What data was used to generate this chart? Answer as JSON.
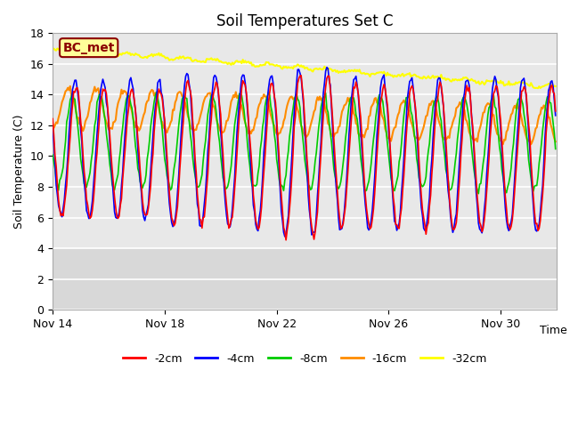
{
  "title": "Soil Temperatures Set C",
  "xlabel": "Time",
  "ylabel": "Soil Temperature (C)",
  "ylim": [
    0,
    18
  ],
  "yticks": [
    0,
    2,
    4,
    6,
    8,
    10,
    12,
    14,
    16,
    18
  ],
  "x_tick_days": [
    14,
    18,
    22,
    26,
    30
  ],
  "x_tick_labels": [
    "Nov 14",
    "Nov 18",
    "Nov 22",
    "Nov 26",
    "Nov 30"
  ],
  "annotation_text": "BC_met",
  "annotation_color": "#8B0000",
  "annotation_bg": "#FFFF99",
  "annotation_border": "#8B0000",
  "series_colors": {
    "-2cm": "#FF0000",
    "-4cm": "#0000FF",
    "-8cm": "#00CC00",
    "-16cm": "#FF8C00",
    "-32cm": "#FFFF00"
  },
  "legend_labels": [
    "-2cm",
    "-4cm",
    "-8cm",
    "-16cm",
    "-32cm"
  ],
  "bg_color": "#FFFFFF",
  "plot_bg_color": "#D8D8D8",
  "plot_bg_upper": "#E8E8E8",
  "grid_color": "#FFFFFF",
  "figsize": [
    6.4,
    4.8
  ],
  "dpi": 100
}
